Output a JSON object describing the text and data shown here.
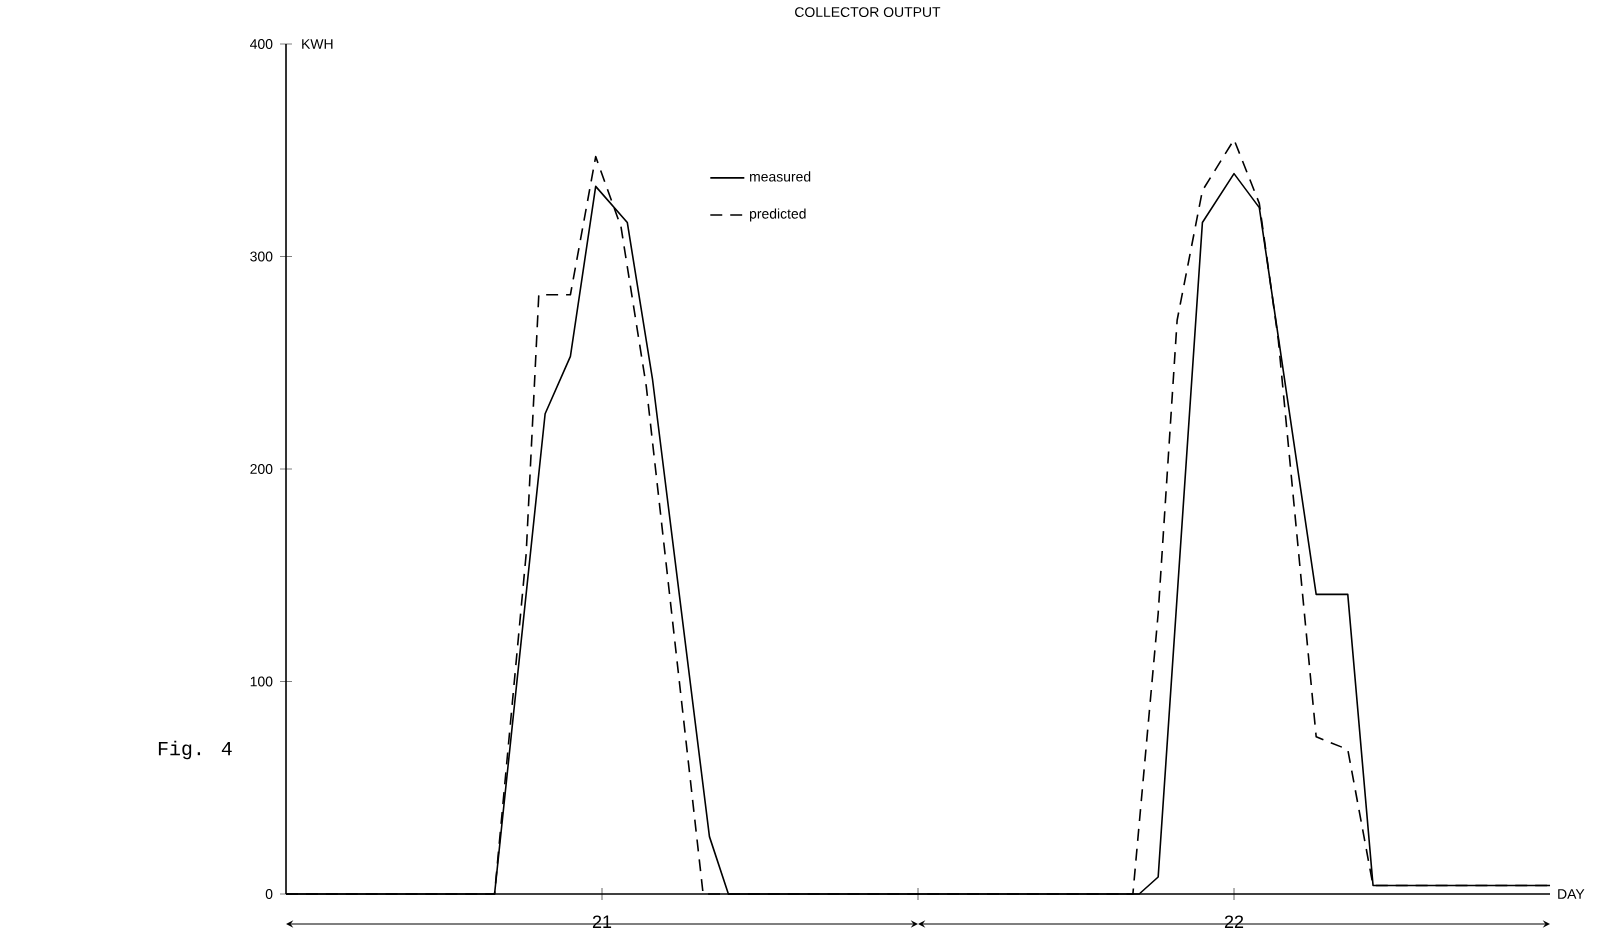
{
  "chart_data": {
    "type": "line",
    "title": "COLLECTOR OUTPUT",
    "xlabel": "DAY",
    "ylabel": "KWH",
    "annotations": [
      "Fig. 4"
    ],
    "xlim": [
      20.5,
      22.5
    ],
    "xticks": [
      21,
      {
        "value": 21.5,
        "label": null
      },
      22
    ],
    "ylim": [
      0,
      400
    ],
    "yticks": [
      0,
      100,
      200,
      300,
      400
    ],
    "legend": "top",
    "grid": false,
    "marker": "none",
    "series": [
      {
        "name": "measured",
        "color": "#000000",
        "line_style": "solid",
        "x": [
          20.5,
          20.83,
          20.91,
          20.95,
          20.99,
          21.04,
          21.08,
          21.17,
          21.2,
          21.85,
          21.88,
          21.95,
          22.0,
          22.04,
          22.13,
          22.18,
          22.22,
          22.5
        ],
        "values": [
          0,
          0,
          226,
          253,
          333,
          316,
          242,
          27,
          0,
          0,
          8,
          316,
          339,
          323,
          141,
          141,
          4,
          4
        ]
      },
      {
        "name": "predicted",
        "color": "#000000",
        "line_style": "dashed",
        "x": [
          20.5,
          20.83,
          20.88,
          20.9,
          20.95,
          20.99,
          21.03,
          21.07,
          21.16,
          21.84,
          21.88,
          21.91,
          21.95,
          22.0,
          22.04,
          22.07,
          22.13,
          22.18,
          22.22,
          22.5
        ],
        "values": [
          0,
          0,
          160,
          282,
          282,
          347,
          314,
          239,
          0,
          0,
          132,
          270,
          331,
          355,
          325,
          261,
          74,
          68,
          4,
          4
        ]
      }
    ]
  }
}
